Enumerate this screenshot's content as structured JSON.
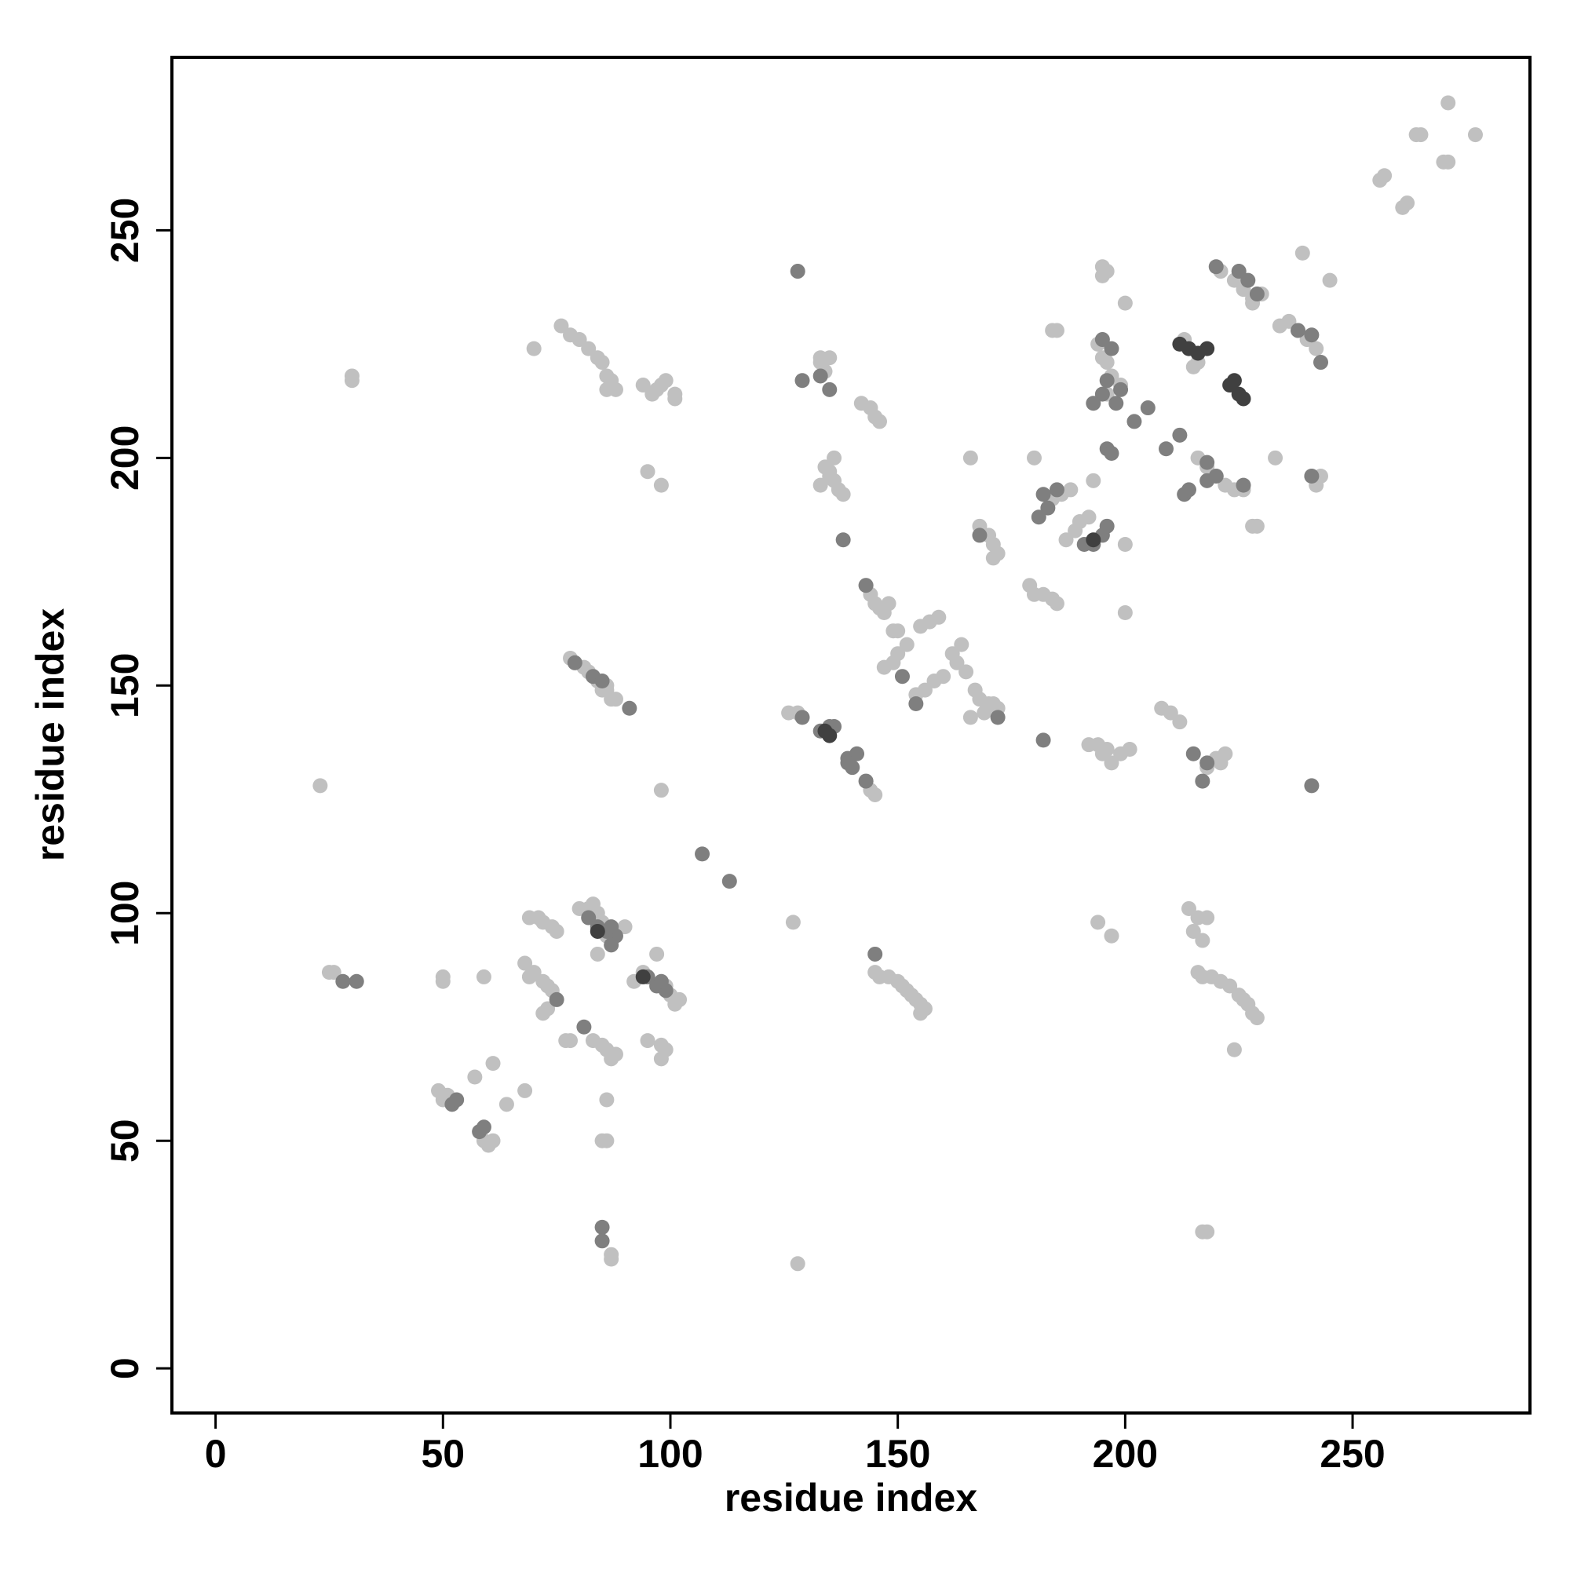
{
  "chart_data": {
    "type": "scatter",
    "xlabel": "residue index",
    "ylabel": "residue index",
    "xlim": [
      -9.6,
      289
    ],
    "ylim": [
      -9.8,
      288
    ],
    "xticks": [
      0,
      50,
      100,
      150,
      200,
      250
    ],
    "yticks": [
      0,
      50,
      100,
      150,
      200,
      250
    ],
    "series": [
      {
        "color": "#c0c0c0",
        "x": [
          271,
          277,
          264,
          265,
          270,
          271,
          256,
          257,
          261,
          262,
          239,
          245,
          234,
          236,
          238,
          240,
          242,
          233,
          221,
          224,
          226,
          228,
          230,
          228,
          195,
          196,
          195,
          200,
          185,
          184,
          194,
          195,
          196,
          197,
          199,
          196,
          213,
          214,
          216,
          215,
          180,
          188,
          186,
          184,
          193,
          200,
          192,
          190,
          189,
          187,
          166,
          200,
          168,
          170,
          171,
          172,
          171,
          179,
          180,
          182,
          184,
          185,
          208,
          210,
          212,
          194,
          195,
          197,
          196,
          199,
          201,
          192,
          220,
          221,
          222,
          218,
          216,
          218,
          220,
          222,
          224,
          226,
          228,
          229,
          241,
          242,
          243,
          133,
          134,
          133,
          135,
          134,
          135,
          136,
          137,
          138,
          133,
          136,
          135,
          142,
          144,
          146,
          145,
          143,
          144,
          145,
          146,
          147,
          148,
          149,
          150,
          155,
          157,
          159,
          152,
          150,
          149,
          147,
          164,
          162,
          163,
          165,
          160,
          158,
          156,
          154,
          167,
          168,
          170,
          172,
          169,
          166,
          171,
          126,
          128,
          144,
          145,
          143,
          76,
          78,
          80,
          82,
          84,
          85,
          86,
          87,
          86,
          88,
          70,
          94,
          96,
          98,
          99,
          101,
          101,
          97,
          30,
          30,
          95,
          98,
          98,
          23,
          78,
          79,
          81,
          82,
          84,
          86,
          87,
          88,
          86,
          85,
          69,
          71,
          72,
          74,
          75,
          80,
          82,
          83,
          84,
          85,
          86,
          87,
          84,
          90,
          92,
          94,
          95,
          99,
          100,
          101,
          102,
          97,
          68,
          69,
          70,
          72,
          73,
          74,
          73,
          72,
          77,
          78,
          83,
          85,
          86,
          88,
          87,
          95,
          98,
          99,
          98,
          59,
          61,
          57,
          64,
          68,
          49,
          51,
          50,
          50,
          50,
          25,
          26,
          59,
          61,
          60,
          86,
          85,
          86,
          87,
          87,
          128,
          127,
          194,
          197,
          145,
          146,
          148,
          150,
          151,
          152,
          153,
          154,
          155,
          156,
          155,
          214,
          216,
          218,
          215,
          217,
          216,
          217,
          219,
          221,
          223,
          225,
          226,
          227,
          228,
          229,
          224,
          217,
          218
        ],
        "values": [
          278,
          271,
          271,
          271,
          265,
          265,
          261,
          262,
          255,
          256,
          245,
          239,
          229,
          230,
          228,
          226,
          224,
          200,
          241,
          239,
          237,
          235,
          236,
          234,
          242,
          241,
          240,
          234,
          228,
          228,
          225,
          222,
          221,
          218,
          216,
          214,
          226,
          224,
          221,
          220,
          200,
          193,
          192,
          191,
          195,
          181,
          187,
          186,
          184,
          182,
          200,
          166,
          185,
          183,
          181,
          179,
          178,
          172,
          170,
          170,
          169,
          168,
          145,
          144,
          142,
          137,
          135,
          133,
          136,
          135,
          136,
          137,
          134,
          133,
          135,
          132,
          200,
          198,
          196,
          194,
          193,
          193,
          185,
          185,
          196,
          194,
          196,
          222,
          219,
          221,
          222,
          198,
          196,
          195,
          193,
          192,
          194,
          200,
          197,
          212,
          211,
          208,
          209,
          172,
          170,
          168,
          167,
          166,
          168,
          162,
          162,
          163,
          164,
          165,
          159,
          157,
          155,
          154,
          159,
          157,
          155,
          153,
          152,
          151,
          149,
          148,
          149,
          147,
          146,
          145,
          144,
          143,
          146,
          144,
          144,
          127,
          126,
          129,
          229,
          227,
          226,
          224,
          222,
          221,
          218,
          217,
          215,
          215,
          224,
          216,
          214,
          216,
          217,
          214,
          213,
          215,
          218,
          217,
          197,
          194,
          127,
          128,
          156,
          155,
          154,
          153,
          151,
          149,
          147,
          147,
          150,
          149,
          99,
          99,
          98,
          97,
          96,
          101,
          101,
          102,
          100,
          98,
          95,
          94,
          91,
          97,
          85,
          87,
          86,
          84,
          82,
          80,
          81,
          91,
          89,
          86,
          87,
          85,
          84,
          83,
          79,
          78,
          72,
          72,
          72,
          71,
          70,
          69,
          68,
          72,
          71,
          70,
          68,
          86,
          67,
          64,
          58,
          61,
          61,
          60,
          59,
          85,
          86,
          87,
          87,
          50,
          50,
          49,
          59,
          50,
          50,
          24,
          25,
          23,
          98,
          98,
          95,
          87,
          86,
          86,
          85,
          84,
          83,
          82,
          81,
          80,
          79,
          78,
          101,
          99,
          99,
          96,
          94,
          87,
          86,
          86,
          85,
          84,
          82,
          81,
          80,
          78,
          77,
          70,
          30,
          30
        ]
      },
      {
        "color": "#7f7f7f",
        "x": [
          128,
          220,
          225,
          227,
          229,
          238,
          241,
          243,
          195,
          197,
          196,
          195,
          199,
          193,
          198,
          129,
          135,
          133,
          202,
          205,
          209,
          212,
          196,
          197,
          213,
          214,
          218,
          218,
          220,
          226,
          241,
          182,
          183,
          181,
          185,
          191,
          193,
          195,
          196,
          168,
          172,
          182,
          143,
          151,
          154,
          138,
          129,
          133,
          135,
          136,
          139,
          141,
          139,
          140,
          143,
          215,
          217,
          218,
          241,
          107,
          113,
          91,
          79,
          83,
          85,
          145,
          82,
          84,
          86,
          88,
          87,
          95,
          97,
          99,
          98,
          75,
          81,
          28,
          31,
          52,
          53,
          58,
          59,
          85,
          85,
          87
        ],
        "values": [
          241,
          242,
          241,
          239,
          236,
          228,
          227,
          221,
          226,
          224,
          217,
          214,
          215,
          212,
          212,
          217,
          215,
          218,
          208,
          211,
          202,
          205,
          202,
          201,
          192,
          193,
          199,
          195,
          196,
          194,
          196,
          192,
          189,
          187,
          193,
          181,
          181,
          183,
          185,
          183,
          143,
          138,
          172,
          152,
          146,
          182,
          143,
          140,
          141,
          141,
          134,
          135,
          133,
          132,
          129,
          135,
          129,
          133,
          128,
          113,
          107,
          145,
          155,
          152,
          151,
          91,
          99,
          97,
          96,
          95,
          97,
          86,
          84,
          83,
          85,
          81,
          75,
          85,
          85,
          58,
          59,
          52,
          53,
          31,
          28,
          93
        ]
      },
      {
        "color": "#404040",
        "x": [
          212,
          214,
          216,
          218,
          224,
          223,
          225,
          226,
          134,
          135,
          193,
          94,
          84
        ],
        "values": [
          225,
          224,
          223,
          224,
          217,
          216,
          214,
          213,
          140,
          139,
          182,
          86,
          96
        ]
      }
    ]
  }
}
